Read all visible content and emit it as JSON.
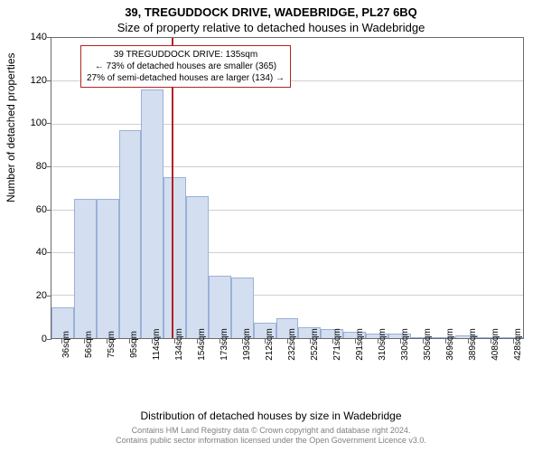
{
  "title_line1": "39, TREGUDDOCK DRIVE, WADEBRIDGE, PL27 6BQ",
  "title_line2": "Size of property relative to detached houses in Wadebridge",
  "chart": {
    "type": "histogram",
    "ylabel": "Number of detached properties",
    "xlabel": "Distribution of detached houses by size in Wadebridge",
    "ylim": [
      0,
      140
    ],
    "ytick_step": 20,
    "yticks": [
      0,
      20,
      40,
      60,
      80,
      100,
      120,
      140
    ],
    "xticks": [
      "36sqm",
      "56sqm",
      "75sqm",
      "95sqm",
      "114sqm",
      "134sqm",
      "154sqm",
      "173sqm",
      "193sqm",
      "212sqm",
      "232sqm",
      "252sqm",
      "271sqm",
      "291sqm",
      "310sqm",
      "330sqm",
      "350sqm",
      "369sqm",
      "389sqm",
      "408sqm",
      "428sqm"
    ],
    "bars": [
      14,
      65,
      65,
      97,
      116,
      75,
      66,
      29,
      28,
      7,
      9,
      5,
      4,
      3,
      2,
      2,
      0,
      0,
      1,
      0,
      0
    ],
    "bar_color": "#d3def0",
    "bar_border": "#9ab1d6",
    "grid_color": "#d0d0d0",
    "axis_color": "#6a6a6a",
    "background_color": "#ffffff",
    "marker_position": 0.255,
    "marker_color": "#b22222",
    "label_fontsize": 12,
    "tick_fontsize": 10
  },
  "info_box": {
    "line1": "39 TREGUDDOCK DRIVE: 135sqm",
    "line2": "← 73% of detached houses are smaller (365)",
    "line3": "27% of semi-detached houses are larger (134) →",
    "border_color": "#b22222"
  },
  "footer": {
    "line1": "Contains HM Land Registry data © Crown copyright and database right 2024.",
    "line2": "Contains public sector information licensed under the Open Government Licence v3.0."
  }
}
